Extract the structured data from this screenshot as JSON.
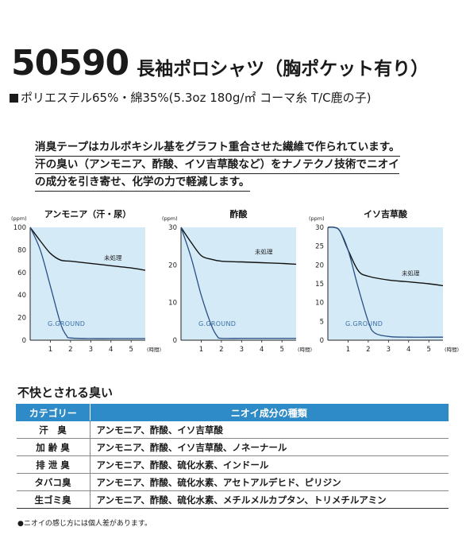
{
  "header": {
    "model": "50590",
    "title": "長袖ポロシャツ（胸ポケット有り）",
    "spec": "ポリエステル65%・綿35%(5.3oz 180g/㎡ コーマ糸 T/C鹿の子)"
  },
  "intro": [
    "消臭テープはカルボキシル基をグラフト重合させた繊維で作られています。",
    "汗の臭い（アンモニア、酢酸、イソ吉草酸など）をナノテクノ技術でニオイ",
    "の成分を引き寄せ、化学の力で軽減します。"
  ],
  "chart_data": [
    {
      "type": "line",
      "title": "アンモニア（汗・尿）",
      "y_unit": "(ppm)",
      "x_unit": "(時間)",
      "x_ticks": [
        1,
        2,
        3,
        4,
        5
      ],
      "y_ticks": [
        0,
        20,
        40,
        60,
        80,
        100
      ],
      "xlim": [
        0,
        5.7
      ],
      "ylim": [
        0,
        100
      ],
      "series": [
        {
          "name": "未処理",
          "x": [
            0,
            0.5,
            1,
            1.5,
            2,
            3,
            4,
            5,
            5.7
          ],
          "y": [
            100,
            88,
            77,
            71,
            70,
            68,
            66,
            64,
            62
          ]
        },
        {
          "name": "G.GROUND",
          "x": [
            0,
            0.5,
            1,
            1.5,
            1.8,
            2,
            3,
            4,
            5,
            5.7
          ],
          "y": [
            100,
            80,
            48,
            15,
            4,
            2,
            1.5,
            1.5,
            1.5,
            1.5
          ]
        }
      ]
    },
    {
      "type": "line",
      "title": "酢酸",
      "y_unit": "(ppm)",
      "x_unit": "(時間)",
      "x_ticks": [
        1,
        2,
        3,
        4,
        5
      ],
      "y_ticks": [
        0,
        10,
        20,
        30
      ],
      "xlim": [
        0,
        5.7
      ],
      "ylim": [
        0,
        30
      ],
      "series": [
        {
          "name": "未処理",
          "x": [
            0,
            0.5,
            1,
            1.5,
            2,
            3,
            4,
            5,
            5.7
          ],
          "y": [
            30,
            26,
            22.5,
            21.5,
            21,
            20.8,
            20.6,
            20.4,
            20.2
          ]
        },
        {
          "name": "G.GROUND",
          "x": [
            0,
            0.5,
            1,
            1.5,
            1.8,
            2,
            3,
            4,
            5,
            5.7
          ],
          "y": [
            30,
            22,
            12,
            4,
            1,
            0.5,
            0.5,
            0.5,
            0.5,
            0.5
          ]
        }
      ]
    },
    {
      "type": "line",
      "title": "イソ吉草酸",
      "y_unit": "(ppm)",
      "x_unit": "(時間)",
      "x_ticks": [
        1,
        2,
        3,
        4,
        5
      ],
      "y_ticks": [
        0,
        5,
        10,
        15,
        20,
        25,
        30
      ],
      "xlim": [
        0,
        5.7
      ],
      "ylim": [
        0,
        30
      ],
      "series": [
        {
          "name": "未処理",
          "x": [
            0,
            0.3,
            0.6,
            1,
            1.5,
            2,
            3,
            4,
            5,
            5.7
          ],
          "y": [
            30,
            30,
            29,
            24,
            18.5,
            17,
            16,
            15.5,
            15,
            14.5
          ]
        },
        {
          "name": "G.GROUND",
          "x": [
            0,
            0.3,
            0.6,
            1,
            1.5,
            2,
            2.3,
            3,
            4,
            5,
            5.7
          ],
          "y": [
            30,
            30,
            29,
            24,
            14,
            5,
            2,
            1,
            0.8,
            0.8,
            0.8
          ]
        }
      ]
    }
  ],
  "odor_section_title": "不快とされる臭い",
  "odor_table": {
    "headers": [
      "カテゴリー",
      "ニオイ成分の種類"
    ],
    "rows": [
      {
        "category": "汗　臭",
        "components": "アンモニア、酢酸、イソ吉草酸"
      },
      {
        "category": "加 齢 臭",
        "components": "アンモニア、酢酸、イソ吉草酸、ノネーナール"
      },
      {
        "category": "排 泄 臭",
        "components": "アンモニア、酢酸、硫化水素、インドール"
      },
      {
        "category": "タバコ臭",
        "components": "アンモニア、酢酸、硫化水素、アセトアルデヒド、ピリジン"
      },
      {
        "category": "生ゴミ臭",
        "components": "アンモニア、酢酸、硫化水素、メチルメルカプタン、トリメチルアミン"
      }
    ]
  },
  "note": "●ニオイの感じ方には個人差があります。",
  "colors": {
    "chart_fill": "#d4ebf7",
    "treated_line": "#2a4e86",
    "untreated_line": "#111111",
    "table_header": "#2e8bc7"
  }
}
